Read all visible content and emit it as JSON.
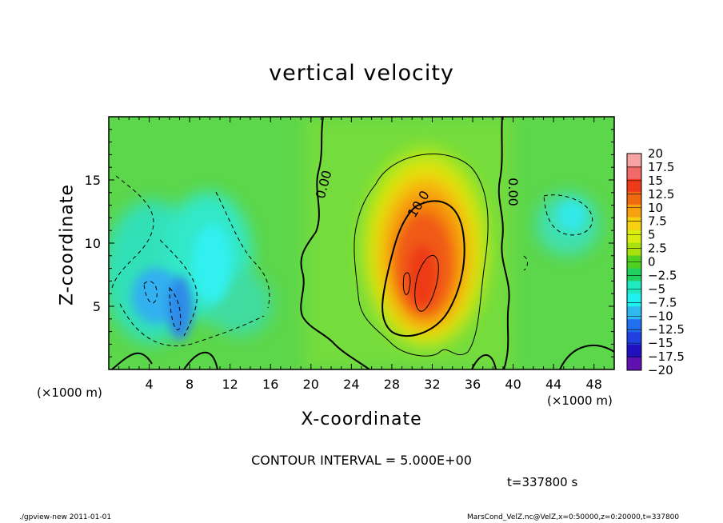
{
  "chart_data": {
    "type": "heatmap",
    "title": "vertical velocity",
    "xlabel": "X-coordinate",
    "ylabel": "Z-coordinate",
    "x_unit": "(×1000 m)",
    "y_unit": "(×1000 m)",
    "xlim": [
      0,
      50
    ],
    "ylim": [
      0,
      20
    ],
    "x_ticks": [
      4,
      8,
      12,
      16,
      20,
      24,
      28,
      32,
      36,
      40,
      44,
      48
    ],
    "y_ticks": [
      5,
      10,
      15
    ],
    "colorbar": {
      "labels": [
        "20",
        "17.5",
        "15",
        "12.5",
        "10",
        "7.5",
        "5",
        "2.5",
        "0",
        "-2.5",
        "-5",
        "-7.5",
        "-10",
        "-12.5",
        "-15",
        "-17.5",
        "-20"
      ],
      "colors": [
        "#f5a3a3",
        "#f06a6a",
        "#ee3a1a",
        "#f26a10",
        "#f7a010",
        "#f7d010",
        "#d8ec10",
        "#a8e010",
        "#50d020",
        "#20d060",
        "#20e8c0",
        "#20f0f0",
        "#30b8f0",
        "#2070f0",
        "#2040e0",
        "#2010c0",
        "#6010b0"
      ]
    },
    "contour_labels": [
      "0.00",
      "10.0",
      "0.00"
    ],
    "contour_interval": "CONTOUR INTERVAL = 5.000E+00",
    "time": "t=337800 s"
  },
  "footer": {
    "left": "./gpview-new  2011-01-01",
    "right": "MarsCond_VelZ.nc@VelZ,x=0:50000,z=0:20000,t=337800"
  }
}
